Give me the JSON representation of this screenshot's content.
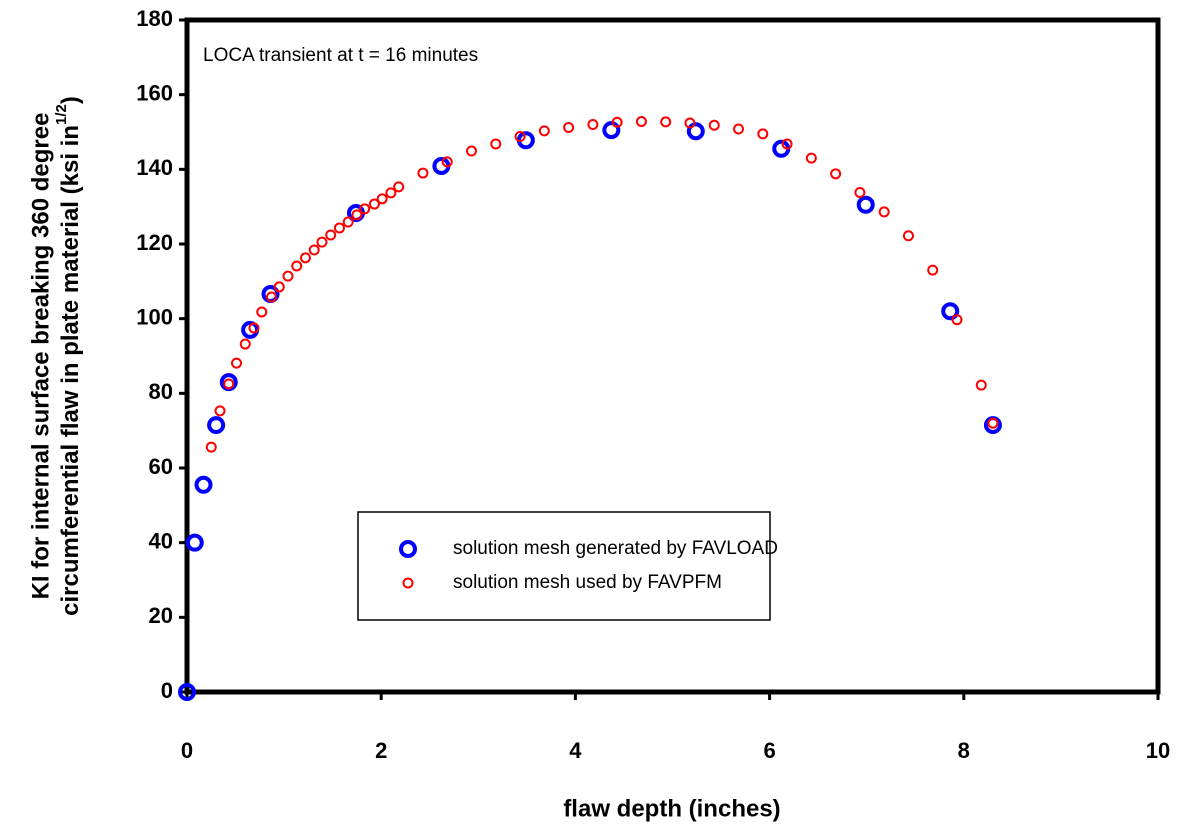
{
  "chart_data": {
    "type": "scatter",
    "annotation": "LOCA transient at t = 16 minutes",
    "xlabel": "flaw depth (inches)",
    "ylabel": {
      "line1": "KI for internal surface breaking 360 degree",
      "line2": "circumferential flaw in plate material (ksi in",
      "superscript": "1/2",
      "suffix": ")"
    },
    "xlim": [
      0,
      10
    ],
    "xticks": [
      0,
      2,
      4,
      6,
      8,
      10
    ],
    "ylim": [
      0,
      180
    ],
    "yticks": [
      0,
      20,
      40,
      60,
      80,
      100,
      120,
      140,
      160,
      180
    ],
    "series": [
      {
        "name": "solution mesh generated by FAVLOAD",
        "color": "#0000ff",
        "marker": "large",
        "x": [
          0,
          0.08,
          0.17,
          0.3,
          0.43,
          0.65,
          0.86,
          1.74,
          2.62,
          3.49,
          4.37,
          5.24,
          6.12,
          6.99,
          7.86,
          8.3
        ],
        "values": [
          0,
          40,
          55.5,
          71.5,
          83,
          97,
          106.6,
          128.3,
          140.9,
          147.8,
          150.5,
          150.2,
          145.5,
          130.5,
          102,
          71.5
        ]
      },
      {
        "name": "solution mesh used by FAVPFM",
        "color": "#ff0000",
        "marker": "small",
        "x": [
          0.25,
          0.34,
          0.43,
          0.51,
          0.6,
          0.69,
          0.77,
          0.87,
          0.95,
          1.04,
          1.13,
          1.22,
          1.31,
          1.39,
          1.48,
          1.57,
          1.66,
          1.75,
          1.83,
          1.93,
          2.01,
          2.1,
          2.18,
          2.43,
          2.68,
          2.93,
          3.18,
          3.43,
          3.68,
          3.93,
          4.18,
          4.43,
          4.68,
          4.93,
          5.18,
          5.43,
          5.68,
          5.93,
          6.18,
          6.43,
          6.68,
          6.93,
          7.18,
          7.43,
          7.68,
          7.93,
          8.18,
          8.3
        ],
        "values": [
          65.6,
          75.3,
          82.5,
          88.1,
          93.2,
          97.5,
          101.8,
          105.8,
          108.5,
          111.4,
          114.1,
          116.3,
          118.4,
          120.5,
          122.4,
          124.3,
          125.9,
          127.8,
          129.4,
          130.7,
          132.1,
          133.7,
          135.3,
          139,
          142,
          144.9,
          146.8,
          148.8,
          150.3,
          151.2,
          152,
          152.6,
          152.8,
          152.7,
          152.4,
          151.8,
          150.8,
          149.5,
          146.8,
          143,
          138.8,
          133.8,
          128.6,
          122.2,
          113,
          99.7,
          82.2,
          72
        ]
      }
    ],
    "legend": "lower-center"
  }
}
